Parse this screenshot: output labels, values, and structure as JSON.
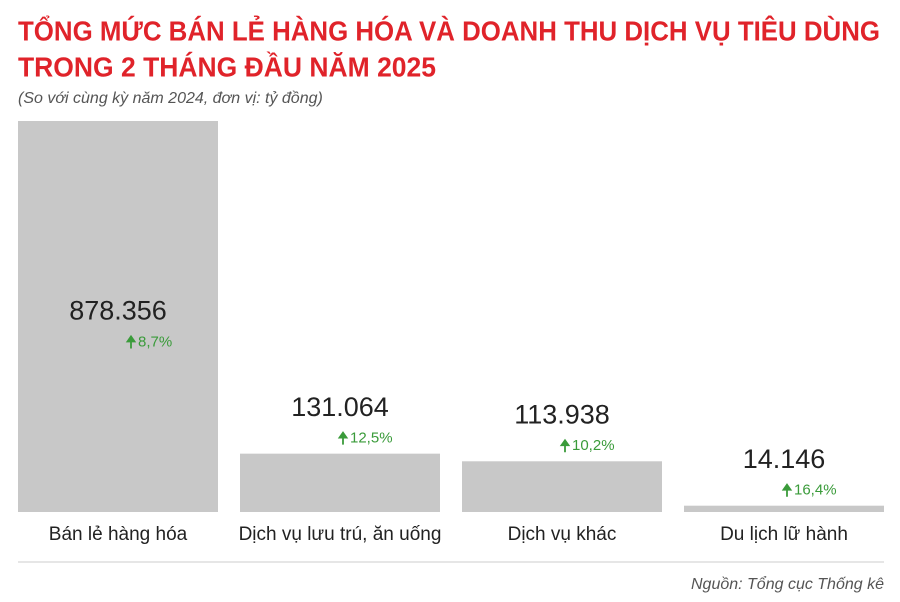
{
  "chart_data": {
    "type": "bar",
    "title": [
      "TỔNG MỨC BÁN LẺ HÀNG HÓA VÀ DOANH THU DỊCH VỤ TIÊU DÙNG",
      "TRONG 2 THÁNG ĐẦU NĂM 2025"
    ],
    "subtitle": "(So với cùng kỳ năm 2024, đơn vị: tỷ đồng)",
    "categories": [
      "Bán lẻ hàng hóa",
      "Dịch vụ lưu trú, ăn uống",
      "Dịch vụ khác",
      "Du lịch lữ hành"
    ],
    "values": [
      878356,
      131064,
      113938,
      14146
    ],
    "value_labels": [
      "878.356",
      "131.064",
      "113.938",
      "14.146"
    ],
    "growth_labels": [
      "8,7%",
      "12,5%",
      "10,2%",
      "16,4%"
    ],
    "color": "#c8c8c8",
    "source": "Nguồn: Tổng cục Thống kê"
  }
}
